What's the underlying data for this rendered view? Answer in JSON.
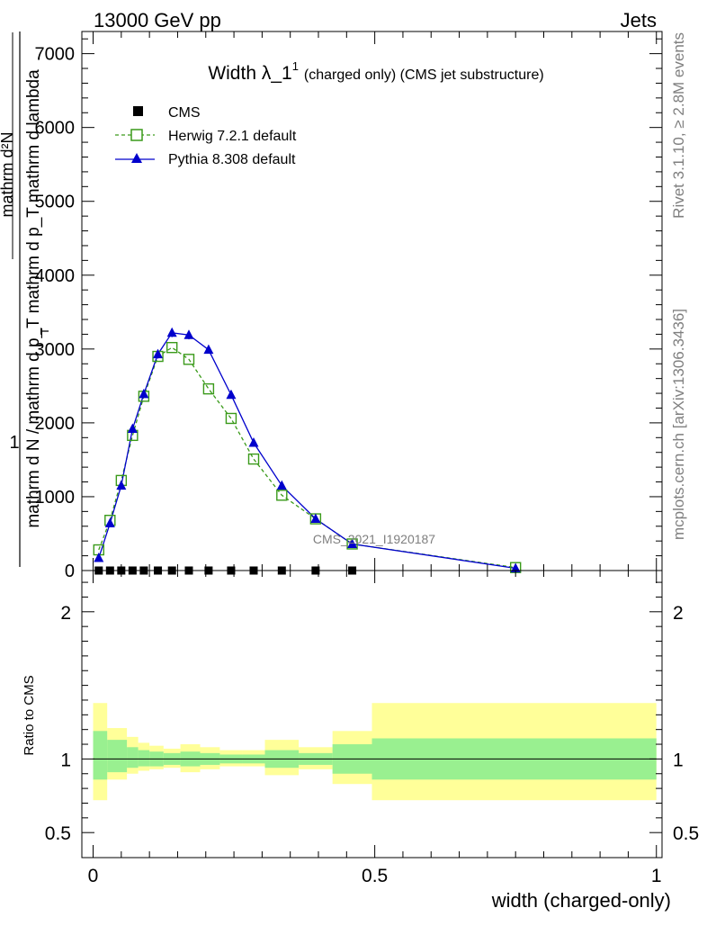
{
  "header": {
    "left": "13000 GeV pp",
    "right": "Jets"
  },
  "side_labels": {
    "rivet": "Rivet 3.1.10, ≥ 2.8M events",
    "mcplots": "mcplots.cern.ch [arXiv:1306.3436]"
  },
  "watermark": "CMS_2021_I1920187",
  "chart_data": [
    {
      "type": "line",
      "title": {
        "main": "Width λ_1",
        "sup": "1",
        "rest": "(charged only) (CMS jet substructure)"
      },
      "ylabel": {
        "one": "1",
        "denominator": "mathrm d N / mathrm d p_T mathrm d p_T mathrm d lambda",
        "subscript": "T",
        "numerator": "mathrm d²N"
      },
      "xlim": [
        -0.02,
        1.01
      ],
      "ylim": [
        0,
        7300
      ],
      "yticks": [
        {
          "v": 0,
          "label": "0"
        },
        {
          "v": 1000,
          "label": "1000"
        },
        {
          "v": 2000,
          "label": "2000"
        },
        {
          "v": 3000,
          "label": "3000"
        },
        {
          "v": 4000,
          "label": "4000"
        },
        {
          "v": 5000,
          "label": "5000"
        },
        {
          "v": 6000,
          "label": "6000"
        },
        {
          "v": 7000,
          "label": "7000"
        }
      ],
      "legend": {
        "position": "top-left",
        "entries": [
          {
            "name": "CMS",
            "marker": "square-filled"
          },
          {
            "name": "Herwig 7.2.1 default",
            "marker": "square-open",
            "dashed": true
          },
          {
            "name": "Pythia 8.308 default",
            "marker": "triangle-filled"
          }
        ]
      },
      "colors": {
        "cms": "#000000",
        "herwig": "#3a9a1a",
        "pythia": "#0000cc"
      },
      "series": [
        {
          "name": "CMS",
          "x": [
            0.01,
            0.03,
            0.05,
            0.07,
            0.09,
            0.115,
            0.14,
            0.17,
            0.205,
            0.245,
            0.285,
            0.335,
            0.395,
            0.46
          ],
          "values": [
            0,
            0,
            0,
            0,
            0,
            0,
            0,
            0,
            0,
            0,
            0,
            0,
            0,
            0
          ]
        },
        {
          "name": "Herwig 7.2.1 default",
          "x": [
            0.01,
            0.03,
            0.05,
            0.07,
            0.09,
            0.115,
            0.14,
            0.17,
            0.205,
            0.245,
            0.285,
            0.335,
            0.395,
            0.46,
            0.75
          ],
          "values": [
            280,
            680,
            1220,
            1830,
            2360,
            2900,
            3020,
            2860,
            2460,
            2060,
            1510,
            1020,
            700,
            360,
            40
          ]
        },
        {
          "name": "Pythia 8.308 default",
          "x": [
            0.01,
            0.03,
            0.05,
            0.07,
            0.09,
            0.115,
            0.14,
            0.17,
            0.205,
            0.245,
            0.285,
            0.335,
            0.395,
            0.46,
            0.75
          ],
          "values": [
            170,
            640,
            1150,
            1920,
            2390,
            2930,
            3220,
            3190,
            2990,
            2380,
            1730,
            1150,
            700,
            360,
            30
          ],
          "errors": [
            20,
            30,
            40,
            50,
            50,
            60,
            60,
            60,
            50,
            40,
            30,
            30,
            20,
            15,
            5
          ]
        }
      ]
    },
    {
      "type": "area",
      "ylabel": "Ratio to CMS",
      "xlabel": "width (charged-only)",
      "xlim": [
        -0.02,
        1.01
      ],
      "ylim": [
        0.33,
        2.28
      ],
      "yticks": [
        {
          "v": 0.5,
          "label": "0.5"
        },
        {
          "v": 1,
          "label": "1"
        },
        {
          "v": 2,
          "label": "2"
        }
      ],
      "xticks": [
        {
          "v": 0,
          "label": "0"
        },
        {
          "v": 0.5,
          "label": "0.5"
        },
        {
          "v": 1,
          "label": "1"
        }
      ],
      "colors": {
        "inner": "#99f090",
        "outer": "#ffff99"
      },
      "bands": [
        {
          "x0": 0.0,
          "x1": 0.025,
          "inner": [
            0.86,
            1.19
          ],
          "outer": [
            0.72,
            1.38
          ]
        },
        {
          "x0": 0.025,
          "x1": 0.06,
          "inner": [
            0.91,
            1.13
          ],
          "outer": [
            0.86,
            1.21
          ]
        },
        {
          "x0": 0.06,
          "x1": 0.08,
          "inner": [
            0.94,
            1.08
          ],
          "outer": [
            0.9,
            1.15
          ]
        },
        {
          "x0": 0.08,
          "x1": 0.1,
          "inner": [
            0.95,
            1.06
          ],
          "outer": [
            0.92,
            1.11
          ]
        },
        {
          "x0": 0.1,
          "x1": 0.125,
          "inner": [
            0.95,
            1.05
          ],
          "outer": [
            0.93,
            1.09
          ]
        },
        {
          "x0": 0.125,
          "x1": 0.155,
          "inner": [
            0.96,
            1.04
          ],
          "outer": [
            0.94,
            1.07
          ]
        },
        {
          "x0": 0.155,
          "x1": 0.19,
          "inner": [
            0.95,
            1.05
          ],
          "outer": [
            0.91,
            1.1
          ]
        },
        {
          "x0": 0.19,
          "x1": 0.225,
          "inner": [
            0.96,
            1.04
          ],
          "outer": [
            0.93,
            1.08
          ]
        },
        {
          "x0": 0.225,
          "x1": 0.265,
          "inner": [
            0.97,
            1.03
          ],
          "outer": [
            0.95,
            1.06
          ]
        },
        {
          "x0": 0.265,
          "x1": 0.305,
          "inner": [
            0.97,
            1.03
          ],
          "outer": [
            0.95,
            1.06
          ]
        },
        {
          "x0": 0.305,
          "x1": 0.365,
          "inner": [
            0.94,
            1.06
          ],
          "outer": [
            0.89,
            1.13
          ]
        },
        {
          "x0": 0.365,
          "x1": 0.425,
          "inner": [
            0.96,
            1.04
          ],
          "outer": [
            0.93,
            1.08
          ]
        },
        {
          "x0": 0.425,
          "x1": 0.495,
          "inner": [
            0.9,
            1.1
          ],
          "outer": [
            0.83,
            1.19
          ]
        },
        {
          "x0": 0.495,
          "x1": 1.0,
          "inner": [
            0.86,
            1.14
          ],
          "outer": [
            0.72,
            1.38
          ]
        }
      ]
    }
  ]
}
